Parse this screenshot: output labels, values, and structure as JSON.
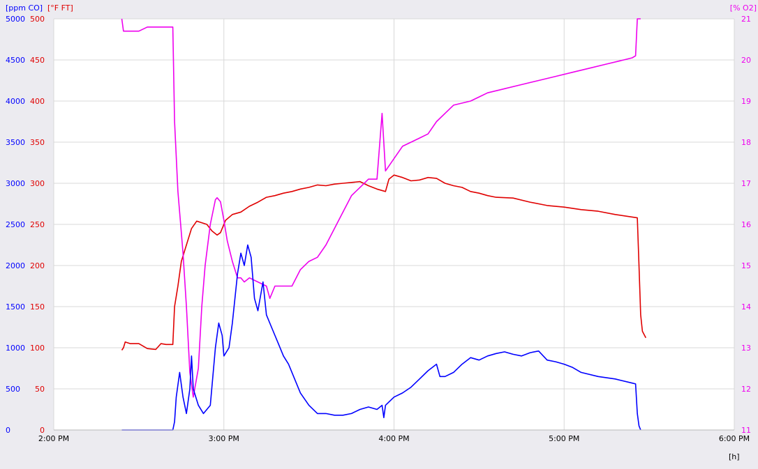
{
  "chart_data": {
    "type": "line",
    "colors": {
      "co": "#0000ff",
      "temp": "#e00000",
      "o2": "#ee00ee",
      "grid": "#d8d8d8",
      "axis": "#000000"
    },
    "xlabel": "[h]",
    "xlim_hours": [
      14,
      18
    ],
    "x_ticks": [
      {
        "h": 14,
        "label": "2:00 PM"
      },
      {
        "h": 15,
        "label": "3:00 PM"
      },
      {
        "h": 16,
        "label": "4:00 PM"
      },
      {
        "h": 17,
        "label": "5:00 PM"
      },
      {
        "h": 18,
        "label": "6:00 PM"
      }
    ],
    "axes": {
      "co": {
        "label": "[ppm CO]",
        "min": 0,
        "max": 5000,
        "ticks": [
          "0",
          "500",
          "1000",
          "1500",
          "2000",
          "2500",
          "3000",
          "3500",
          "4000",
          "4500",
          "5000"
        ]
      },
      "temp": {
        "label": "[°F FT]",
        "min": 0,
        "max": 500,
        "ticks": [
          "0",
          "50",
          "100",
          "150",
          "200",
          "250",
          "300",
          "350",
          "400",
          "450",
          "500"
        ]
      },
      "o2": {
        "label": "[% O2]",
        "min": 11,
        "max": 21,
        "ticks": [
          "11",
          "12",
          "13",
          "14",
          "15",
          "16",
          "17",
          "18",
          "19",
          "20",
          "21"
        ]
      }
    },
    "series": [
      {
        "key": "temp",
        "axis": "temp",
        "points": [
          [
            14.4,
            97
          ],
          [
            14.41,
            100
          ],
          [
            14.42,
            107
          ],
          [
            14.45,
            105
          ],
          [
            14.5,
            105
          ],
          [
            14.55,
            99
          ],
          [
            14.6,
            98
          ],
          [
            14.63,
            105
          ],
          [
            14.66,
            104
          ],
          [
            14.7,
            104
          ],
          [
            14.71,
            150
          ],
          [
            14.73,
            175
          ],
          [
            14.75,
            205
          ],
          [
            14.78,
            225
          ],
          [
            14.81,
            245
          ],
          [
            14.84,
            254
          ],
          [
            14.87,
            252
          ],
          [
            14.9,
            250
          ],
          [
            14.93,
            242
          ],
          [
            14.96,
            237
          ],
          [
            14.98,
            240
          ],
          [
            15.01,
            255
          ],
          [
            15.05,
            262
          ],
          [
            15.1,
            265
          ],
          [
            15.15,
            272
          ],
          [
            15.2,
            277
          ],
          [
            15.25,
            283
          ],
          [
            15.3,
            285
          ],
          [
            15.35,
            288
          ],
          [
            15.4,
            290
          ],
          [
            15.45,
            293
          ],
          [
            15.5,
            295
          ],
          [
            15.55,
            298
          ],
          [
            15.6,
            297
          ],
          [
            15.65,
            299
          ],
          [
            15.7,
            300
          ],
          [
            15.75,
            301
          ],
          [
            15.8,
            302
          ],
          [
            15.85,
            297
          ],
          [
            15.9,
            293
          ],
          [
            15.95,
            290
          ],
          [
            15.97,
            305
          ],
          [
            16.0,
            310
          ],
          [
            16.05,
            307
          ],
          [
            16.1,
            303
          ],
          [
            16.15,
            304
          ],
          [
            16.2,
            307
          ],
          [
            16.25,
            306
          ],
          [
            16.3,
            300
          ],
          [
            16.35,
            297
          ],
          [
            16.4,
            295
          ],
          [
            16.45,
            290
          ],
          [
            16.5,
            288
          ],
          [
            16.55,
            285
          ],
          [
            16.6,
            283
          ],
          [
            16.7,
            282
          ],
          [
            16.8,
            277
          ],
          [
            16.9,
            273
          ],
          [
            17.0,
            271
          ],
          [
            17.1,
            268
          ],
          [
            17.2,
            266
          ],
          [
            17.3,
            262
          ],
          [
            17.4,
            259
          ],
          [
            17.43,
            258
          ],
          [
            17.44,
            200
          ],
          [
            17.45,
            140
          ],
          [
            17.46,
            120
          ],
          [
            17.48,
            112
          ]
        ]
      },
      {
        "key": "o2",
        "axis": "o2",
        "points": [
          [
            14.4,
            21.0
          ],
          [
            14.41,
            20.7
          ],
          [
            14.5,
            20.7
          ],
          [
            14.55,
            20.8
          ],
          [
            14.6,
            20.8
          ],
          [
            14.7,
            20.8
          ],
          [
            14.71,
            18.5
          ],
          [
            14.73,
            16.8
          ],
          [
            14.75,
            15.8
          ],
          [
            14.76,
            15.3
          ],
          [
            14.78,
            14.0
          ],
          [
            14.8,
            12.4
          ],
          [
            14.82,
            11.8
          ],
          [
            14.85,
            12.5
          ],
          [
            14.87,
            14.0
          ],
          [
            14.89,
            15.0
          ],
          [
            14.92,
            16.0
          ],
          [
            14.95,
            16.6
          ],
          [
            14.96,
            16.65
          ],
          [
            14.98,
            16.55
          ],
          [
            15.0,
            16.1
          ],
          [
            15.02,
            15.6
          ],
          [
            15.05,
            15.1
          ],
          [
            15.08,
            14.7
          ],
          [
            15.1,
            14.7
          ],
          [
            15.12,
            14.6
          ],
          [
            15.15,
            14.7
          ],
          [
            15.2,
            14.6
          ],
          [
            15.25,
            14.5
          ],
          [
            15.27,
            14.2
          ],
          [
            15.3,
            14.5
          ],
          [
            15.35,
            14.5
          ],
          [
            15.4,
            14.5
          ],
          [
            15.45,
            14.9
          ],
          [
            15.5,
            15.1
          ],
          [
            15.55,
            15.2
          ],
          [
            15.6,
            15.5
          ],
          [
            15.65,
            15.9
          ],
          [
            15.7,
            16.3
          ],
          [
            15.75,
            16.7
          ],
          [
            15.8,
            16.9
          ],
          [
            15.85,
            17.1
          ],
          [
            15.9,
            17.1
          ],
          [
            15.93,
            18.7
          ],
          [
            15.95,
            17.3
          ],
          [
            16.0,
            17.6
          ],
          [
            16.05,
            17.9
          ],
          [
            16.1,
            18.0
          ],
          [
            16.15,
            18.1
          ],
          [
            16.2,
            18.2
          ],
          [
            16.25,
            18.5
          ],
          [
            16.3,
            18.7
          ],
          [
            16.35,
            18.9
          ],
          [
            16.45,
            19.0
          ],
          [
            16.5,
            19.1
          ],
          [
            16.55,
            19.2
          ],
          [
            16.65,
            19.3
          ],
          [
            16.75,
            19.4
          ],
          [
            16.85,
            19.5
          ],
          [
            16.95,
            19.6
          ],
          [
            17.05,
            19.7
          ],
          [
            17.15,
            19.8
          ],
          [
            17.25,
            19.9
          ],
          [
            17.35,
            20.0
          ],
          [
            17.4,
            20.05
          ],
          [
            17.42,
            20.1
          ],
          [
            17.43,
            21.0
          ],
          [
            17.45,
            21.0
          ]
        ]
      },
      {
        "key": "co",
        "axis": "co",
        "points": [
          [
            14.4,
            0
          ],
          [
            14.7,
            0
          ],
          [
            14.71,
            100
          ],
          [
            14.72,
            400
          ],
          [
            14.74,
            700
          ],
          [
            14.76,
            400
          ],
          [
            14.78,
            200
          ],
          [
            14.8,
            500
          ],
          [
            14.81,
            900
          ],
          [
            14.82,
            500
          ],
          [
            14.85,
            300
          ],
          [
            14.88,
            200
          ],
          [
            14.92,
            300
          ],
          [
            14.95,
            1000
          ],
          [
            14.97,
            1300
          ],
          [
            14.99,
            1150
          ],
          [
            15.0,
            900
          ],
          [
            15.03,
            1000
          ],
          [
            15.05,
            1300
          ],
          [
            15.08,
            1900
          ],
          [
            15.1,
            2150
          ],
          [
            15.12,
            2000
          ],
          [
            15.14,
            2250
          ],
          [
            15.16,
            2100
          ],
          [
            15.18,
            1600
          ],
          [
            15.2,
            1450
          ],
          [
            15.23,
            1800
          ],
          [
            15.25,
            1400
          ],
          [
            15.28,
            1250
          ],
          [
            15.32,
            1050
          ],
          [
            15.35,
            900
          ],
          [
            15.38,
            800
          ],
          [
            15.42,
            600
          ],
          [
            15.45,
            450
          ],
          [
            15.5,
            300
          ],
          [
            15.55,
            200
          ],
          [
            15.6,
            200
          ],
          [
            15.65,
            180
          ],
          [
            15.7,
            180
          ],
          [
            15.75,
            200
          ],
          [
            15.8,
            250
          ],
          [
            15.85,
            280
          ],
          [
            15.9,
            250
          ],
          [
            15.93,
            300
          ],
          [
            15.94,
            150
          ],
          [
            15.95,
            300
          ],
          [
            16.0,
            400
          ],
          [
            16.05,
            450
          ],
          [
            16.1,
            520
          ],
          [
            16.15,
            620
          ],
          [
            16.2,
            720
          ],
          [
            16.25,
            800
          ],
          [
            16.27,
            650
          ],
          [
            16.3,
            650
          ],
          [
            16.35,
            700
          ],
          [
            16.4,
            800
          ],
          [
            16.45,
            880
          ],
          [
            16.5,
            850
          ],
          [
            16.55,
            900
          ],
          [
            16.6,
            930
          ],
          [
            16.65,
            950
          ],
          [
            16.7,
            920
          ],
          [
            16.75,
            900
          ],
          [
            16.8,
            940
          ],
          [
            16.85,
            960
          ],
          [
            16.9,
            850
          ],
          [
            16.95,
            830
          ],
          [
            17.0,
            800
          ],
          [
            17.05,
            760
          ],
          [
            17.1,
            700
          ],
          [
            17.2,
            650
          ],
          [
            17.3,
            620
          ],
          [
            17.4,
            570
          ],
          [
            17.42,
            560
          ],
          [
            17.43,
            200
          ],
          [
            17.44,
            50
          ],
          [
            17.45,
            0
          ]
        ]
      }
    ]
  }
}
